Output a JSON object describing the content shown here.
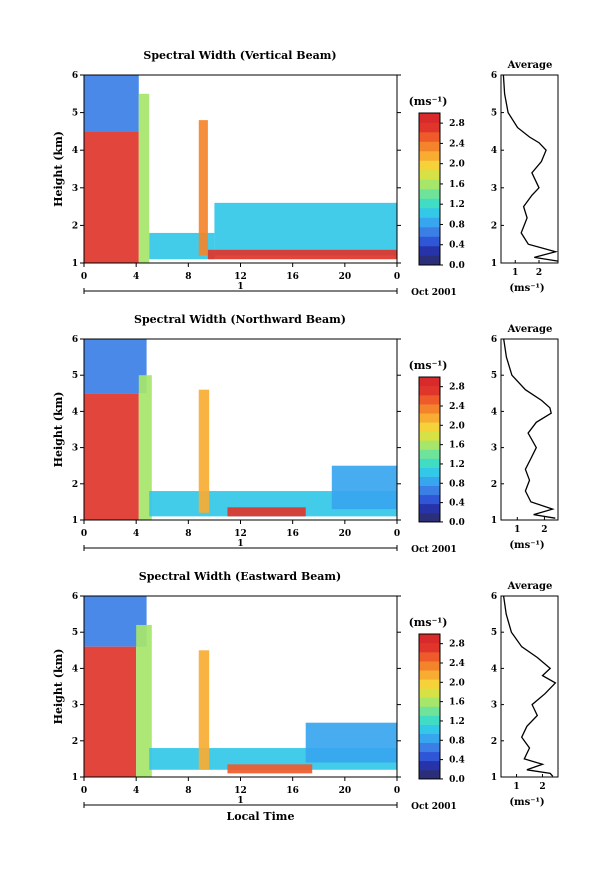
{
  "chart_data": [
    {
      "type": "heatmap",
      "title": "Spectral Width (Vertical Beam)",
      "ylabel": "Height (km)",
      "yticks": [
        "1",
        "2",
        "3",
        "4",
        "5",
        "6"
      ],
      "xticks": [
        "0",
        "4",
        "8",
        "12",
        "16",
        "20",
        "0"
      ],
      "xlim": [
        0,
        24
      ],
      "ylim": [
        1,
        6
      ],
      "date_marker": "1",
      "date_label": "Oct 2001",
      "colorbar": {
        "unit": "(ms⁻¹)",
        "labels": [
          "2.8",
          "2.4",
          "2.0",
          "1.6",
          "1.2",
          "0.8",
          "0.4",
          "0.0"
        ],
        "range": [
          0.0,
          3.0
        ]
      },
      "regions": [
        {
          "x": [
            0,
            4.2
          ],
          "y": [
            4.5,
            6.0
          ],
          "value": 0.6
        },
        {
          "x": [
            0,
            4.2
          ],
          "y": [
            1.0,
            4.5
          ],
          "value": 2.8
        },
        {
          "x": [
            4.2,
            5.0
          ],
          "y": [
            1.0,
            5.5
          ],
          "value": 1.5
        },
        {
          "x": [
            5.0,
            10.0
          ],
          "y": [
            1.1,
            1.8
          ],
          "value": 1.0
        },
        {
          "x": [
            8.8,
            9.5
          ],
          "y": [
            1.2,
            4.8
          ],
          "value": 2.4
        },
        {
          "x": [
            10.0,
            24.0
          ],
          "y": [
            1.2,
            2.6
          ],
          "value": 1.0
        },
        {
          "x": [
            9.5,
            24.0
          ],
          "y": [
            1.1,
            1.35
          ],
          "value": 2.8
        }
      ],
      "average_profile": {
        "title": "Average",
        "xlabel": "(ms⁻¹)",
        "xticks": [
          "1",
          "2"
        ],
        "yticks": [
          "1",
          "2",
          "3",
          "4",
          "5",
          "6"
        ],
        "xlim": [
          0.4,
          2.8
        ],
        "ylim": [
          1,
          6
        ],
        "x": [
          0.5,
          0.55,
          0.7,
          1.1,
          1.6,
          2.0,
          2.3,
          2.1,
          1.7,
          2.0,
          1.7,
          1.35,
          1.5,
          1.25,
          1.55,
          2.7,
          1.8,
          2.8
        ],
        "y": [
          6.0,
          5.5,
          5.0,
          4.6,
          4.35,
          4.2,
          4.0,
          3.7,
          3.4,
          3.0,
          2.8,
          2.5,
          2.2,
          1.8,
          1.5,
          1.3,
          1.15,
          1.05
        ]
      }
    },
    {
      "type": "heatmap",
      "title": "Spectral Width (Northward Beam)",
      "ylabel": "Height (km)",
      "yticks": [
        "1",
        "2",
        "3",
        "4",
        "5",
        "6"
      ],
      "xticks": [
        "0",
        "4",
        "8",
        "12",
        "16",
        "20",
        "0"
      ],
      "xlim": [
        0,
        24
      ],
      "ylim": [
        1,
        6
      ],
      "date_marker": "1",
      "date_label": "Oct 2001",
      "colorbar": {
        "unit": "(ms⁻¹)",
        "labels": [
          "2.8",
          "2.4",
          "2.0",
          "1.6",
          "1.2",
          "0.8",
          "0.4",
          "0.0"
        ],
        "range": [
          0.0,
          3.0
        ]
      },
      "regions": [
        {
          "x": [
            0,
            4.8
          ],
          "y": [
            4.5,
            6.0
          ],
          "value": 0.6
        },
        {
          "x": [
            0,
            4.2
          ],
          "y": [
            1.0,
            4.5
          ],
          "value": 2.8
        },
        {
          "x": [
            4.2,
            5.2
          ],
          "y": [
            1.0,
            5.0
          ],
          "value": 1.6
        },
        {
          "x": [
            5.0,
            24.0
          ],
          "y": [
            1.1,
            1.8
          ],
          "value": 1.0
        },
        {
          "x": [
            8.8,
            9.6
          ],
          "y": [
            1.2,
            4.6
          ],
          "value": 2.2
        },
        {
          "x": [
            11.0,
            17.0
          ],
          "y": [
            1.1,
            1.35
          ],
          "value": 2.8
        },
        {
          "x": [
            19.0,
            24.0
          ],
          "y": [
            1.3,
            2.5
          ],
          "value": 0.8
        }
      ],
      "average_profile": {
        "title": "Average",
        "xlabel": "(ms⁻¹)",
        "xticks": [
          "1",
          "2"
        ],
        "yticks": [
          "1",
          "2",
          "3",
          "4",
          "5",
          "6"
        ],
        "xlim": [
          0.4,
          2.5
        ],
        "ylim": [
          1,
          6
        ],
        "x": [
          0.5,
          0.6,
          0.8,
          1.3,
          1.9,
          2.2,
          2.25,
          1.7,
          1.4,
          1.7,
          1.5,
          1.3,
          1.45,
          1.3,
          1.5,
          2.3,
          1.6,
          2.4
        ],
        "y": [
          6.0,
          5.5,
          5.0,
          4.6,
          4.3,
          4.1,
          3.95,
          3.7,
          3.4,
          3.0,
          2.7,
          2.4,
          2.1,
          1.8,
          1.5,
          1.3,
          1.15,
          1.05
        ]
      }
    },
    {
      "type": "heatmap",
      "title": "Spectral Width (Eastward Beam)",
      "ylabel": "Height (km)",
      "xlabel": "Local Time",
      "yticks": [
        "1",
        "2",
        "3",
        "4",
        "5",
        "6"
      ],
      "xticks": [
        "0",
        "4",
        "8",
        "12",
        "16",
        "20",
        "0"
      ],
      "xlim": [
        0,
        24
      ],
      "ylim": [
        1,
        6
      ],
      "date_marker": "1",
      "date_label": "Oct 2001",
      "colorbar": {
        "unit": "(ms⁻¹)",
        "labels": [
          "2.8",
          "2.4",
          "2.0",
          "1.6",
          "1.2",
          "0.8",
          "0.4",
          "0.0"
        ],
        "range": [
          0.0,
          3.0
        ]
      },
      "regions": [
        {
          "x": [
            0,
            4.8
          ],
          "y": [
            4.6,
            6.0
          ],
          "value": 0.6
        },
        {
          "x": [
            0,
            4.0
          ],
          "y": [
            1.0,
            4.6
          ],
          "value": 2.8
        },
        {
          "x": [
            4.0,
            5.2
          ],
          "y": [
            1.0,
            5.2
          ],
          "value": 1.6
        },
        {
          "x": [
            5.0,
            24.0
          ],
          "y": [
            1.2,
            1.8
          ],
          "value": 1.0
        },
        {
          "x": [
            8.8,
            9.6
          ],
          "y": [
            1.2,
            4.5
          ],
          "value": 2.2
        },
        {
          "x": [
            11.0,
            17.5
          ],
          "y": [
            1.1,
            1.35
          ],
          "value": 2.6
        },
        {
          "x": [
            17.0,
            24.0
          ],
          "y": [
            1.4,
            2.5
          ],
          "value": 0.9
        }
      ],
      "average_profile": {
        "title": "Average",
        "xlabel": "(ms⁻¹)",
        "xticks": [
          "1",
          "2"
        ],
        "yticks": [
          "1",
          "2",
          "3",
          "4",
          "5",
          "6"
        ],
        "xlim": [
          0.4,
          2.6
        ],
        "ylim": [
          1,
          6
        ],
        "x": [
          0.5,
          0.6,
          0.8,
          1.2,
          1.8,
          2.3,
          2.0,
          2.5,
          2.1,
          1.6,
          1.8,
          1.4,
          1.2,
          1.5,
          1.3,
          2.0,
          1.4,
          2.3,
          2.4
        ],
        "y": [
          6.0,
          5.5,
          5.0,
          4.6,
          4.3,
          4.0,
          3.8,
          3.6,
          3.3,
          3.0,
          2.7,
          2.4,
          2.1,
          1.8,
          1.5,
          1.35,
          1.2,
          1.1,
          1.02
        ]
      }
    }
  ]
}
